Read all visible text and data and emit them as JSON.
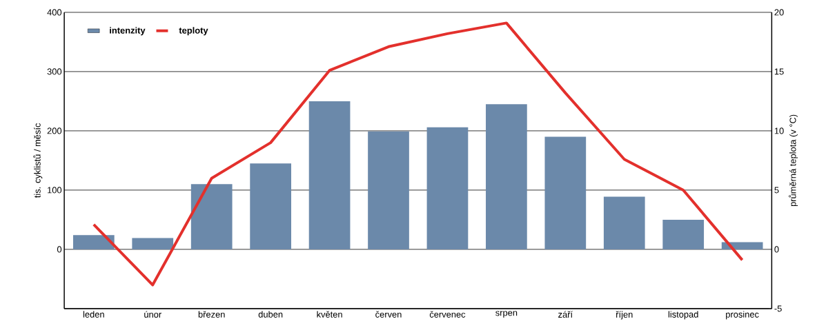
{
  "chart_data": {
    "type": "bar",
    "ylabel": "tis. cyklistů / měsíc",
    "y2label": "průměrná teplota (v °C)",
    "categories": [
      "leden",
      "únor",
      "březen",
      "duben",
      "květen",
      "červen",
      "červenec",
      "srpen",
      "září",
      "říjen",
      "listopad",
      "prosinec"
    ],
    "series": [
      {
        "name": "intenzity",
        "color": "#6b89aa",
        "values": [
          24,
          19,
          110,
          145,
          250,
          199,
          206,
          245,
          190,
          89,
          50,
          12
        ]
      },
      {
        "name": "teploty",
        "type": "line",
        "axis": "y2",
        "color": "#e3302c",
        "values": [
          2.1,
          -3,
          6,
          9,
          15.1,
          17.1,
          18.2,
          19.1,
          13.2,
          7.6,
          5,
          -0.9
        ]
      }
    ],
    "ylim": [
      -100,
      400
    ],
    "yticks": [
      {
        "value": -100,
        "label": null
      },
      0,
      100,
      200,
      300,
      400
    ],
    "y2lim": [
      -5,
      20
    ],
    "y2ticks": [
      -5,
      0,
      5,
      10,
      15,
      20
    ],
    "grid": "y",
    "legend": "top left"
  }
}
